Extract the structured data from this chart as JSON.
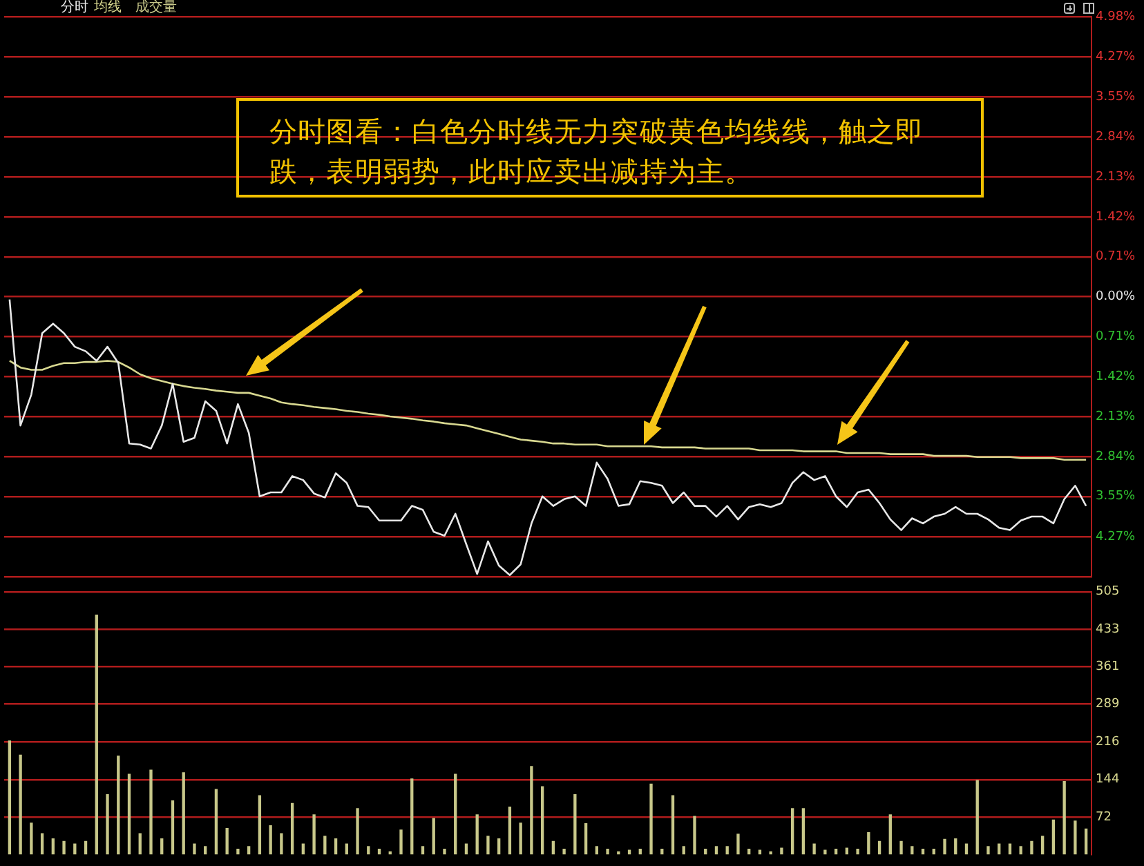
{
  "chart_data": [
    {
      "type": "line",
      "categories": [
        null,
        null,
        null,
        null,
        null,
        null,
        null,
        null,
        null,
        null,
        null,
        null,
        null,
        null,
        null,
        null,
        null,
        null,
        null,
        null,
        null,
        null,
        null,
        null,
        null,
        null,
        null,
        null,
        null,
        null,
        null,
        null,
        null,
        null,
        null,
        null,
        null,
        null,
        null,
        null,
        null,
        null,
        null,
        null,
        null,
        null,
        null,
        null,
        null,
        null,
        null,
        null,
        null,
        null,
        null,
        null,
        null,
        null,
        null,
        null,
        null,
        null,
        null,
        null,
        null,
        null,
        null,
        null,
        null,
        null,
        null,
        null,
        null,
        null,
        null,
        null,
        null,
        null,
        null,
        null,
        null,
        null,
        null,
        null,
        null,
        null,
        null,
        null,
        null,
        null,
        null,
        null,
        null,
        null,
        null,
        null,
        null,
        null,
        null,
        null
      ],
      "series": [
        {
          "name": "分时",
          "color": "#e8e8e8",
          "values": [
            -0.05,
            -2.29,
            -1.74,
            -0.65,
            -0.48,
            -0.65,
            -0.89,
            -0.97,
            -1.14,
            -0.89,
            -1.18,
            -2.61,
            -2.63,
            -2.7,
            -2.29,
            -1.55,
            -2.58,
            -2.51,
            -1.86,
            -2.03,
            -2.61,
            -1.91,
            -2.42,
            -3.55,
            -3.48,
            -3.48,
            -3.19,
            -3.26,
            -3.5,
            -3.57,
            -3.14,
            -3.31,
            -3.72,
            -3.74,
            -3.98,
            -3.98,
            -3.98,
            -3.72,
            -3.79,
            -4.18,
            -4.25,
            -3.86,
            -4.4,
            -4.93,
            -4.35,
            -4.78,
            -4.95,
            -4.76,
            -4.03,
            -3.55,
            -3.72,
            -3.6,
            -3.55,
            -3.72,
            -2.95,
            -3.24,
            -3.72,
            -3.69,
            -3.28,
            -3.31,
            -3.36,
            -3.67,
            -3.48,
            -3.72,
            -3.72,
            -3.91,
            -3.72,
            -3.96,
            -3.74,
            -3.69,
            -3.74,
            -3.67,
            -3.31,
            -3.12,
            -3.26,
            -3.19,
            -3.55,
            -3.74,
            -3.48,
            -3.43,
            -3.67,
            -3.96,
            -4.15,
            -3.94,
            -4.03,
            -3.91,
            -3.86,
            -3.74,
            -3.86,
            -3.86,
            -3.96,
            -4.11,
            -4.15,
            -3.98,
            -3.91,
            -3.91,
            -4.03,
            -3.6,
            -3.36,
            -3.72
          ]
        },
        {
          "name": "均线",
          "color": "#d8d890",
          "values": [
            -1.14,
            -1.26,
            -1.3,
            -1.3,
            -1.23,
            -1.18,
            -1.18,
            -1.16,
            -1.16,
            -1.14,
            -1.16,
            -1.26,
            -1.38,
            -1.45,
            -1.5,
            -1.55,
            -1.59,
            -1.62,
            -1.64,
            -1.67,
            -1.69,
            -1.71,
            -1.71,
            -1.76,
            -1.81,
            -1.88,
            -1.91,
            -1.93,
            -1.96,
            -1.98,
            -2.0,
            -2.03,
            -2.05,
            -2.08,
            -2.1,
            -2.13,
            -2.15,
            -2.17,
            -2.2,
            -2.22,
            -2.25,
            -2.27,
            -2.29,
            -2.34,
            -2.39,
            -2.44,
            -2.49,
            -2.54,
            -2.56,
            -2.58,
            -2.61,
            -2.61,
            -2.63,
            -2.63,
            -2.63,
            -2.66,
            -2.66,
            -2.66,
            -2.66,
            -2.66,
            -2.68,
            -2.68,
            -2.68,
            -2.68,
            -2.7,
            -2.7,
            -2.7,
            -2.7,
            -2.7,
            -2.73,
            -2.73,
            -2.73,
            -2.73,
            -2.75,
            -2.75,
            -2.75,
            -2.75,
            -2.78,
            -2.78,
            -2.78,
            -2.78,
            -2.8,
            -2.8,
            -2.8,
            -2.8,
            -2.83,
            -2.83,
            -2.83,
            -2.83,
            -2.85,
            -2.85,
            -2.85,
            -2.85,
            -2.87,
            -2.87,
            -2.87,
            -2.87,
            -2.9,
            -2.9,
            -2.9
          ]
        }
      ],
      "ylim": [
        -4.98,
        4.98
      ],
      "yticks": [
        {
          "value": 4.98,
          "label": "4.98%"
        },
        {
          "value": 4.27,
          "label": "4.27%"
        },
        {
          "value": 3.55,
          "label": "3.55%"
        },
        {
          "value": 2.84,
          "label": "2.84%"
        },
        {
          "value": 2.13,
          "label": "2.13%"
        },
        {
          "value": 1.42,
          "label": "1.42%"
        },
        {
          "value": 0.71,
          "label": "0.71%"
        },
        {
          "value": 0,
          "label": "0.00%"
        },
        {
          "value": -0.71,
          "label": "0.71%"
        },
        {
          "value": -1.42,
          "label": "1.42%"
        },
        {
          "value": -2.13,
          "label": "2.13%"
        },
        {
          "value": -2.84,
          "label": "2.84%"
        },
        {
          "value": -3.55,
          "label": "3.55%"
        },
        {
          "value": -4.27,
          "label": "4.27%"
        },
        {
          "value": -4.98,
          "label": null
        }
      ],
      "grid": "y",
      "tick_labels": "y",
      "legend": "top left",
      "marker": "none",
      "line_style": "solid",
      "annotations": [
        "分时图看：白色分时线无力突破黄色均线线，触之即跌，表明弱势，此时应卖出减持为主。"
      ]
    },
    {
      "type": "bar",
      "categories": [
        null,
        null,
        null,
        null,
        null,
        null,
        null,
        null,
        null,
        null,
        null,
        null,
        null,
        null,
        null,
        null,
        null,
        null,
        null,
        null,
        null,
        null,
        null,
        null,
        null,
        null,
        null,
        null,
        null,
        null,
        null,
        null,
        null,
        null,
        null,
        null,
        null,
        null,
        null,
        null,
        null,
        null,
        null,
        null,
        null,
        null,
        null,
        null,
        null,
        null,
        null,
        null,
        null,
        null,
        null,
        null,
        null,
        null,
        null,
        null,
        null,
        null,
        null,
        null,
        null,
        null,
        null,
        null,
        null,
        null,
        null,
        null,
        null,
        null,
        null,
        null,
        null,
        null,
        null,
        null,
        null,
        null,
        null,
        null,
        null,
        null,
        null,
        null,
        null,
        null,
        null,
        null,
        null,
        null,
        null,
        null,
        null,
        null,
        null,
        null
      ],
      "series": [
        {
          "name": "成交量",
          "color": "#c8c88a",
          "values": [
            218,
            191,
            60,
            40,
            30,
            25,
            20,
            25,
            460,
            115,
            189,
            154,
            40,
            162,
            30,
            103,
            157,
            20,
            15,
            125,
            50,
            10,
            15,
            113,
            55,
            40,
            98,
            20,
            76,
            35,
            30,
            20,
            88,
            15,
            10,
            5,
            47,
            145,
            15,
            69,
            10,
            154,
            20,
            76,
            35,
            30,
            91,
            60,
            169,
            130,
            25,
            10,
            115,
            59,
            15,
            10,
            5,
            8,
            10,
            135,
            10,
            113,
            15,
            73,
            10,
            15,
            15,
            39,
            10,
            8,
            5,
            12,
            88,
            88,
            20,
            8,
            10,
            12,
            10,
            42,
            25,
            76,
            25,
            15,
            10,
            10,
            29,
            30,
            20,
            142,
            15,
            20,
            20,
            15,
            25,
            35,
            66,
            140,
            64,
            49
          ]
        }
      ],
      "ylim": [
        0,
        505
      ],
      "yticks": [
        72,
        144,
        216,
        289,
        361,
        433,
        505
      ],
      "grid": "y",
      "tick_labels": "y",
      "legend": "top left"
    }
  ]
}
